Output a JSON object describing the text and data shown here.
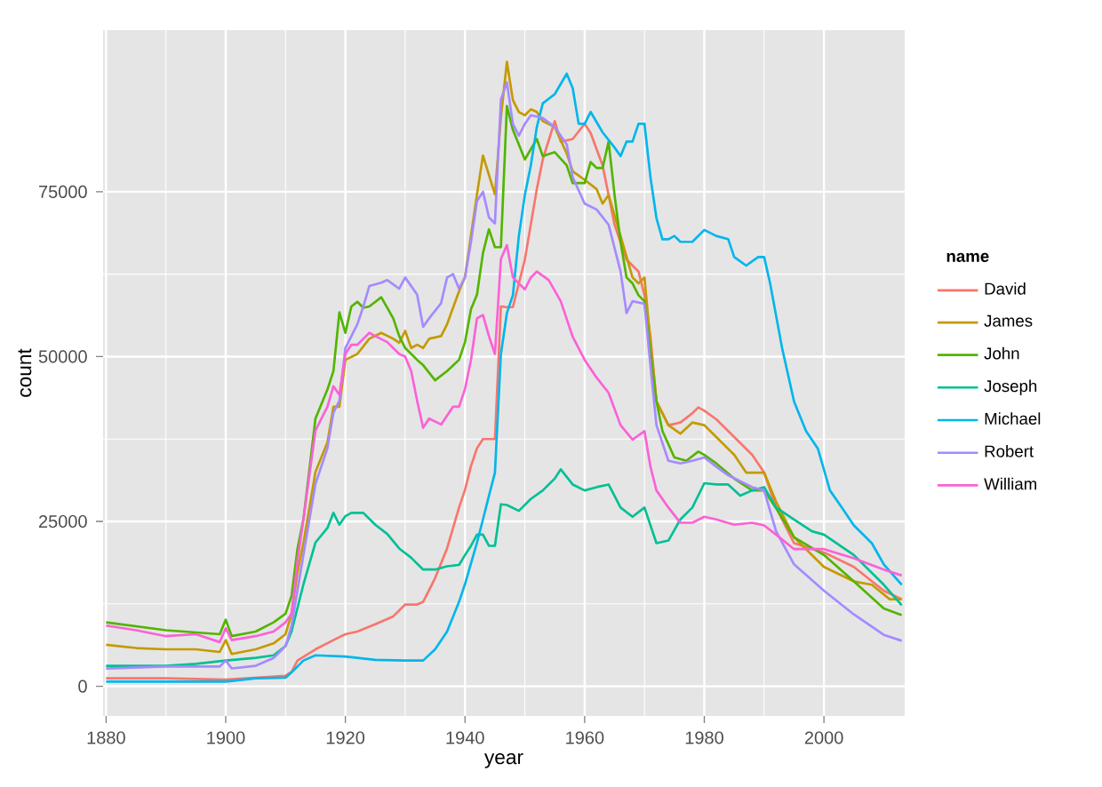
{
  "chart_data": {
    "type": "line",
    "xlabel": "year",
    "ylabel": "count",
    "legend_title": "name",
    "legend": "right",
    "grid": true,
    "line_style": "solid",
    "marker": "none",
    "xlim": [
      1879.5,
      2013.5
    ],
    "xticks": [
      1880,
      1900,
      1920,
      1940,
      1960,
      1980,
      2000
    ],
    "ylim": [
      -4500,
      99500
    ],
    "yticks": [
      0,
      25000,
      50000,
      75000
    ],
    "series": [
      {
        "name": "David",
        "color": "#f8766d",
        "x": [
          1880,
          1890,
          1900,
          1905,
          1910,
          1911,
          1912,
          1915,
          1918,
          1920,
          1922,
          1925,
          1928,
          1930,
          1932,
          1933,
          1935,
          1937,
          1939,
          1940,
          1941,
          1942,
          1943,
          1945,
          1946,
          1947,
          1948,
          1949,
          1950,
          1952,
          1953,
          1955,
          1956,
          1958,
          1960,
          1961,
          1963,
          1965,
          1967,
          1969,
          1970,
          1971,
          1972,
          1974,
          1976,
          1978,
          1979,
          1980,
          1982,
          1985,
          1988,
          1990,
          1992,
          1995,
          2000,
          2005,
          2010,
          2013
        ],
        "values": [
          1200,
          1200,
          1000,
          1300,
          1600,
          2200,
          3900,
          5600,
          7000,
          7900,
          8300,
          9400,
          10600,
          12400,
          12400,
          12800,
          16400,
          20900,
          27100,
          29800,
          33400,
          36100,
          37500,
          37500,
          57600,
          57500,
          57500,
          61100,
          64700,
          75400,
          79900,
          85700,
          82600,
          83000,
          85300,
          83900,
          79000,
          70000,
          64700,
          62900,
          59300,
          53000,
          43200,
          39600,
          40000,
          41400,
          42300,
          41800,
          40500,
          37800,
          35100,
          32400,
          27100,
          21700,
          20300,
          18100,
          14500,
          13200
        ]
      },
      {
        "name": "James",
        "color": "#c49a00",
        "x": [
          1880,
          1885,
          1890,
          1895,
          1899,
          1900,
          1901,
          1905,
          1908,
          1910,
          1911,
          1912,
          1913,
          1915,
          1917,
          1918,
          1919,
          1920,
          1922,
          1924,
          1926,
          1928,
          1929,
          1930,
          1931,
          1932,
          1933,
          1934,
          1936,
          1937,
          1939,
          1940,
          1941,
          1942,
          1943,
          1945,
          1946,
          1947,
          1948,
          1949,
          1950,
          1951,
          1952,
          1953,
          1955,
          1957,
          1958,
          1960,
          1962,
          1963,
          1964,
          1966,
          1968,
          1969,
          1970,
          1971,
          1972,
          1974,
          1976,
          1978,
          1980,
          1982,
          1985,
          1987,
          1990,
          1992,
          1995,
          2000,
          2005,
          2008,
          2011,
          2013
        ],
        "values": [
          6300,
          5800,
          5600,
          5600,
          5200,
          7000,
          4900,
          5600,
          6500,
          7900,
          11000,
          17300,
          21800,
          32500,
          37000,
          42400,
          42400,
          49500,
          50400,
          52700,
          53600,
          52700,
          52100,
          53900,
          51300,
          51800,
          51300,
          52700,
          53100,
          54900,
          59900,
          62100,
          68400,
          74600,
          80500,
          74600,
          86300,
          94700,
          88900,
          87100,
          86600,
          87500,
          87100,
          85700,
          84800,
          80800,
          78100,
          76800,
          75400,
          73200,
          74500,
          68300,
          62000,
          61100,
          62000,
          52100,
          43200,
          39600,
          38300,
          40000,
          39600,
          37800,
          35100,
          32400,
          32400,
          28000,
          22600,
          18100,
          15900,
          15400,
          13200,
          13200
        ]
      },
      {
        "name": "John",
        "color": "#53b400",
        "x": [
          1880,
          1890,
          1899,
          1900,
          1901,
          1905,
          1908,
          1910,
          1911,
          1912,
          1913,
          1915,
          1917,
          1918,
          1919,
          1920,
          1921,
          1922,
          1923,
          1924,
          1926,
          1928,
          1929,
          1930,
          1931,
          1932,
          1933,
          1935,
          1937,
          1939,
          1940,
          1941,
          1942,
          1943,
          1944,
          1945,
          1946,
          1947,
          1948,
          1950,
          1952,
          1953,
          1955,
          1957,
          1958,
          1960,
          1961,
          1962,
          1963,
          1964,
          1965,
          1966,
          1967,
          1968,
          1969,
          1970,
          1971,
          1972,
          1973,
          1975,
          1977,
          1979,
          1980,
          1982,
          1985,
          1988,
          1990,
          1992,
          1995,
          2000,
          2005,
          2010,
          2013
        ],
        "values": [
          9700,
          8500,
          7900,
          10100,
          7600,
          8300,
          9700,
          11000,
          13700,
          20900,
          25400,
          40600,
          45000,
          47800,
          56700,
          53600,
          57600,
          58300,
          57400,
          57600,
          59000,
          55800,
          53100,
          51300,
          50400,
          49500,
          48700,
          46400,
          47800,
          49500,
          52200,
          57200,
          59400,
          65700,
          69300,
          66600,
          66600,
          88000,
          84400,
          79900,
          83000,
          80400,
          81000,
          79000,
          76300,
          76300,
          79500,
          78600,
          78600,
          82600,
          74500,
          67400,
          62000,
          61100,
          59300,
          58400,
          50400,
          43200,
          38700,
          34700,
          34200,
          35600,
          35100,
          33800,
          31500,
          29700,
          29700,
          27000,
          22600,
          19900,
          15900,
          11800,
          10800
        ]
      },
      {
        "name": "Joseph",
        "color": "#00c094",
        "x": [
          1880,
          1890,
          1895,
          1900,
          1905,
          1908,
          1910,
          1911,
          1912,
          1913,
          1915,
          1917,
          1918,
          1919,
          1920,
          1921,
          1923,
          1925,
          1927,
          1929,
          1931,
          1933,
          1935,
          1937,
          1939,
          1940,
          1941,
          1942,
          1943,
          1944,
          1945,
          1946,
          1947,
          1949,
          1951,
          1953,
          1955,
          1956,
          1958,
          1960,
          1962,
          1964,
          1966,
          1968,
          1970,
          1972,
          1974,
          1976,
          1978,
          1980,
          1982,
          1984,
          1986,
          1988,
          1990,
          1992,
          1995,
          1998,
          2000,
          2005,
          2010,
          2013
        ],
        "values": [
          3100,
          3100,
          3400,
          3900,
          4300,
          4700,
          6100,
          8300,
          11900,
          15500,
          21800,
          24000,
          26300,
          24500,
          25800,
          26300,
          26300,
          24500,
          23100,
          20900,
          19500,
          17700,
          17700,
          18200,
          18400,
          19900,
          21300,
          23000,
          23000,
          21300,
          21300,
          27600,
          27500,
          26600,
          28400,
          29700,
          31500,
          32900,
          30600,
          29700,
          30200,
          30600,
          27100,
          25700,
          27100,
          21700,
          22100,
          25300,
          27100,
          30800,
          30600,
          30600,
          28900,
          29700,
          30200,
          27100,
          25300,
          23500,
          23000,
          19900,
          15400,
          12300
        ]
      },
      {
        "name": "Michael",
        "color": "#00b6eb",
        "x": [
          1880,
          1900,
          1905,
          1910,
          1911,
          1913,
          1915,
          1920,
          1925,
          1930,
          1933,
          1935,
          1937,
          1939,
          1940,
          1942,
          1943,
          1944,
          1945,
          1946,
          1947,
          1948,
          1949,
          1950,
          1951,
          1952,
          1953,
          1955,
          1957,
          1958,
          1959,
          1960,
          1961,
          1963,
          1965,
          1966,
          1967,
          1968,
          1969,
          1970,
          1971,
          1972,
          1973,
          1974,
          1975,
          1976,
          1978,
          1980,
          1982,
          1984,
          1985,
          1987,
          1989,
          1990,
          1991,
          1993,
          1995,
          1997,
          1999,
          2001,
          2003,
          2005,
          2008,
          2010,
          2013
        ],
        "values": [
          700,
          700,
          1200,
          1300,
          2100,
          3900,
          4700,
          4500,
          4000,
          3900,
          3900,
          5600,
          8300,
          12800,
          15500,
          21800,
          25300,
          28900,
          32400,
          50400,
          56600,
          59300,
          68300,
          74500,
          79000,
          84800,
          88400,
          89800,
          92900,
          90700,
          85300,
          85300,
          87100,
          84000,
          81700,
          80400,
          82600,
          82600,
          85300,
          85300,
          77200,
          71000,
          67800,
          67800,
          68300,
          67400,
          67400,
          69200,
          68300,
          67800,
          65100,
          63800,
          65100,
          65100,
          61100,
          51300,
          43200,
          38700,
          36000,
          29700,
          27100,
          24400,
          21700,
          18500,
          15400
        ]
      },
      {
        "name": "Robert",
        "color": "#a58aff",
        "x": [
          1880,
          1890,
          1899,
          1900,
          1901,
          1905,
          1908,
          1910,
          1911,
          1912,
          1913,
          1915,
          1917,
          1918,
          1919,
          1920,
          1921,
          1922,
          1923,
          1924,
          1926,
          1927,
          1929,
          1930,
          1932,
          1933,
          1934,
          1936,
          1937,
          1938,
          1939,
          1940,
          1941,
          1942,
          1943,
          1944,
          1945,
          1946,
          1947,
          1948,
          1949,
          1950,
          1951,
          1953,
          1955,
          1957,
          1958,
          1960,
          1962,
          1964,
          1966,
          1967,
          1968,
          1970,
          1971,
          1972,
          1974,
          1976,
          1978,
          1980,
          1982,
          1984,
          1986,
          1988,
          1990,
          1992,
          1995,
          2000,
          2005,
          2010,
          2013
        ],
        "values": [
          2700,
          3000,
          3000,
          3900,
          2700,
          3100,
          4300,
          6100,
          9200,
          14600,
          20000,
          30700,
          36100,
          41500,
          43300,
          51300,
          53100,
          54900,
          57600,
          60700,
          61200,
          61600,
          60300,
          62000,
          59400,
          54500,
          55800,
          58100,
          62000,
          62500,
          60300,
          62000,
          67400,
          73600,
          75000,
          71100,
          70200,
          89000,
          91600,
          85300,
          83500,
          85300,
          86600,
          86200,
          84800,
          82200,
          77200,
          73200,
          72300,
          70000,
          62900,
          56600,
          58400,
          58000,
          48600,
          39600,
          34200,
          33800,
          34200,
          34700,
          33300,
          32000,
          31100,
          30200,
          29700,
          23500,
          18500,
          14500,
          10900,
          7800,
          6900
        ]
      },
      {
        "name": "William",
        "color": "#fb61d7",
        "x": [
          1880,
          1885,
          1890,
          1895,
          1899,
          1900,
          1901,
          1905,
          1908,
          1910,
          1911,
          1912,
          1913,
          1915,
          1917,
          1918,
          1919,
          1920,
          1921,
          1922,
          1924,
          1925,
          1927,
          1929,
          1930,
          1931,
          1932,
          1933,
          1934,
          1936,
          1938,
          1939,
          1940,
          1941,
          1942,
          1943,
          1944,
          1945,
          1946,
          1947,
          1948,
          1950,
          1951,
          1952,
          1954,
          1956,
          1958,
          1960,
          1962,
          1964,
          1966,
          1968,
          1970,
          1971,
          1972,
          1974,
          1976,
          1978,
          1980,
          1982,
          1985,
          1988,
          1990,
          1992,
          1995,
          2000,
          2005,
          2010,
          2013
        ],
        "values": [
          9200,
          8500,
          7600,
          7900,
          6700,
          8800,
          7000,
          7600,
          8300,
          9700,
          11000,
          19100,
          25400,
          38800,
          42400,
          45500,
          44200,
          50400,
          51800,
          51800,
          53600,
          53100,
          52200,
          50400,
          50000,
          47800,
          43300,
          39200,
          40600,
          39700,
          42400,
          42400,
          45100,
          49500,
          55800,
          56300,
          53100,
          50400,
          64800,
          66900,
          62000,
          60200,
          62000,
          62900,
          61600,
          58400,
          53000,
          49500,
          46800,
          44500,
          39600,
          37400,
          38700,
          33300,
          29700,
          27100,
          24800,
          24800,
          25700,
          25300,
          24500,
          24800,
          24400,
          23000,
          20800,
          20800,
          19400,
          17700,
          16800
        ]
      }
    ]
  }
}
